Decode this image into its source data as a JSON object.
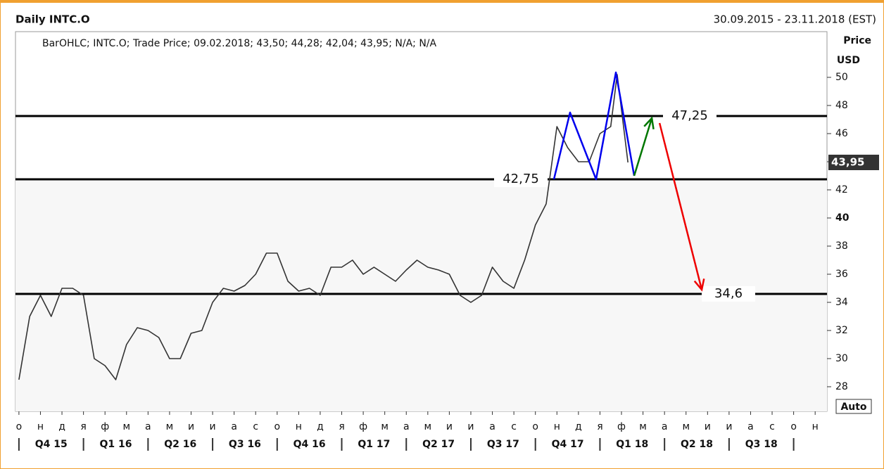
{
  "chart_data": {
    "type": "line",
    "title": "Daily INTC.O",
    "date_range": "30.09.2015 - 23.11.2018 (EST)",
    "legend_text": "BarOHLC; INTC.O; Trade Price; 09.02.2018; 43,50; 44,28; 42,04; 43,95; N/A; N/A",
    "y_axis_label": "Price",
    "y_axis_unit": "USD",
    "scale_button": "Auto",
    "xlim": [
      -0.16,
      37.55
    ],
    "xticks": [
      {
        "value": 0,
        "label": "о"
      },
      {
        "value": 1,
        "label": "н"
      },
      {
        "value": 2,
        "label": "д"
      },
      {
        "value": 3,
        "label": "я"
      },
      {
        "value": 4,
        "label": "ф"
      },
      {
        "value": 5,
        "label": "м"
      },
      {
        "value": 6,
        "label": "а"
      },
      {
        "value": 7,
        "label": "м"
      },
      {
        "value": 8,
        "label": "и"
      },
      {
        "value": 9,
        "label": "и"
      },
      {
        "value": 10,
        "label": "а"
      },
      {
        "value": 11,
        "label": "с"
      },
      {
        "value": 12,
        "label": "о"
      },
      {
        "value": 13,
        "label": "н"
      },
      {
        "value": 14,
        "label": "д"
      },
      {
        "value": 15,
        "label": "я"
      },
      {
        "value": 16,
        "label": "ф"
      },
      {
        "value": 17,
        "label": "м"
      },
      {
        "value": 18,
        "label": "а"
      },
      {
        "value": 19,
        "label": "м"
      },
      {
        "value": 20,
        "label": "и"
      },
      {
        "value": 21,
        "label": "и"
      },
      {
        "value": 22,
        "label": "а"
      },
      {
        "value": 23,
        "label": "с"
      },
      {
        "value": 24,
        "label": "о"
      },
      {
        "value": 25,
        "label": "н"
      },
      {
        "value": 26,
        "label": "д"
      },
      {
        "value": 27,
        "label": "я"
      },
      {
        "value": 28,
        "label": "ф"
      },
      {
        "value": 29,
        "label": "м"
      },
      {
        "value": 30,
        "label": "а"
      },
      {
        "value": 31,
        "label": "м"
      },
      {
        "value": 32,
        "label": "и"
      },
      {
        "value": 33,
        "label": "и"
      },
      {
        "value": 34,
        "label": "а"
      },
      {
        "value": 35,
        "label": "с"
      },
      {
        "value": 36,
        "label": "о"
      },
      {
        "value": 37,
        "label": "н"
      }
    ],
    "quarters": [
      "Q4 15",
      "Q1 16",
      "Q2 16",
      "Q3 16",
      "Q4 16",
      "Q1 17",
      "Q2 17",
      "Q3 17",
      "Q4 17",
      "Q1 18",
      "Q2 18",
      "Q3 18"
    ],
    "ylim": [
      26.25,
      53.25
    ],
    "yticks": [
      28,
      30,
      32,
      34,
      36,
      38,
      40,
      42,
      44,
      46,
      48,
      50
    ],
    "series": [
      {
        "name": "INTC.O",
        "color": "#333333",
        "x": [
          0,
          0.5,
          1,
          1.5,
          2,
          2.5,
          3,
          3.5,
          4,
          4.5,
          5,
          5.5,
          6,
          6.5,
          7,
          7.5,
          8,
          8.5,
          9,
          9.5,
          10,
          10.5,
          11,
          11.5,
          12,
          12.5,
          13,
          13.5,
          14,
          14.5,
          15,
          15.5,
          16,
          16.5,
          17,
          17.5,
          18,
          18.5,
          19,
          19.5,
          20,
          20.5,
          21,
          21.5,
          22,
          22.5,
          23,
          23.5,
          24,
          24.5,
          25,
          25.5,
          26,
          26.5,
          27,
          27.5,
          27.8,
          28.3
        ],
        "values": [
          28.5,
          33,
          34.5,
          33,
          35,
          35,
          34.5,
          30,
          29.5,
          28.5,
          31,
          32.2,
          32,
          31.5,
          30,
          30,
          31.8,
          32,
          34,
          35,
          34.8,
          35.2,
          36,
          37.5,
          37.5,
          35.5,
          34.8,
          35,
          34.5,
          36.5,
          36.5,
          37,
          36,
          36.5,
          36,
          35.5,
          36.3,
          37,
          36.5,
          36.3,
          36,
          34.5,
          34,
          34.5,
          36.5,
          35.5,
          35,
          37,
          39.5,
          41,
          46.5,
          45,
          44,
          44,
          46,
          46.5,
          50.2,
          43.95
        ]
      }
    ],
    "levels": [
      {
        "value": 47.25,
        "label": "47,25"
      },
      {
        "value": 42.75,
        "label": "42,75"
      },
      {
        "value": 34.6,
        "label": "34,6"
      }
    ],
    "last_price": {
      "value": 43.95,
      "label": "43,95"
    },
    "annotations": [
      {
        "color": "#0000ee",
        "x": [
          24.86,
          25.61,
          26.82,
          27.74,
          28.59
        ],
        "values": [
          42.75,
          47.5,
          42.75,
          50.35,
          43.0
        ]
      },
      {
        "color": "#007700",
        "x": [
          28.59,
          29.41
        ],
        "values": [
          43.0,
          47.1
        ],
        "arrow": true
      },
      {
        "color": "#ee0000",
        "x": [
          29.77,
          31.73
        ],
        "values": [
          46.75,
          34.9
        ],
        "arrow": true
      }
    ]
  }
}
